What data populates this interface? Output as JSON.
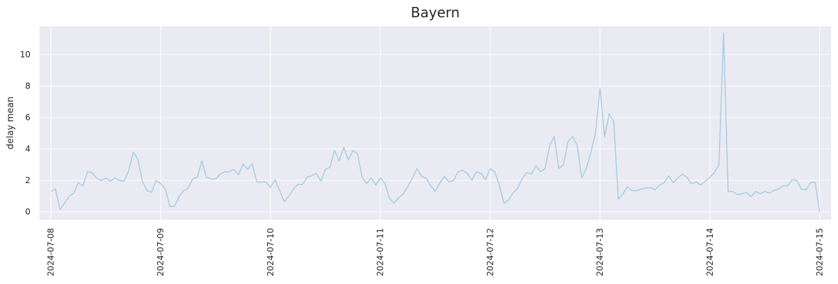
{
  "chart_data": {
    "type": "line",
    "title": "Bayern",
    "xlabel": "",
    "ylabel": "delay mean",
    "ylim": [
      -0.5,
      11.8
    ],
    "xlim": [
      "2024-07-07T21:30",
      "2024-07-15T02:30"
    ],
    "grid": true,
    "legend": "none",
    "line_color": "#a6cee3",
    "background_color": "#eaeaf2",
    "grid_color": "#ffffff",
    "x_ticks": [
      "2024-07-08",
      "2024-07-09",
      "2024-07-10",
      "2024-07-11",
      "2024-07-12",
      "2024-07-13",
      "2024-07-14",
      "2024-07-15"
    ],
    "y_ticks": [
      0,
      2,
      4,
      6,
      8,
      10
    ],
    "series": [
      {
        "x": [
          "2024-07-08 00:00",
          "2024-07-08 01:00",
          "2024-07-08 02:00",
          "2024-07-08 03:00",
          "2024-07-08 04:00",
          "2024-07-08 05:00",
          "2024-07-08 06:00",
          "2024-07-08 07:00",
          "2024-07-08 08:00",
          "2024-07-08 09:00",
          "2024-07-08 10:00",
          "2024-07-08 11:00",
          "2024-07-08 12:00",
          "2024-07-08 13:00",
          "2024-07-08 14:00",
          "2024-07-08 15:00",
          "2024-07-08 16:00",
          "2024-07-08 17:00",
          "2024-07-08 18:00",
          "2024-07-08 19:00",
          "2024-07-08 20:00",
          "2024-07-08 21:00",
          "2024-07-08 22:00",
          "2024-07-08 23:00",
          "2024-07-09 00:00",
          "2024-07-09 01:00",
          "2024-07-09 02:00",
          "2024-07-09 03:00",
          "2024-07-09 04:00",
          "2024-07-09 05:00",
          "2024-07-09 06:00",
          "2024-07-09 07:00",
          "2024-07-09 08:00",
          "2024-07-09 09:00",
          "2024-07-09 10:00",
          "2024-07-09 11:00",
          "2024-07-09 12:00",
          "2024-07-09 13:00",
          "2024-07-09 14:00",
          "2024-07-09 15:00",
          "2024-07-09 16:00",
          "2024-07-09 17:00",
          "2024-07-09 18:00",
          "2024-07-09 19:00",
          "2024-07-09 20:00",
          "2024-07-09 21:00",
          "2024-07-09 22:00",
          "2024-07-09 23:00",
          "2024-07-10 00:00",
          "2024-07-10 01:00",
          "2024-07-10 02:00",
          "2024-07-10 03:00",
          "2024-07-10 04:00",
          "2024-07-10 05:00",
          "2024-07-10 06:00",
          "2024-07-10 07:00",
          "2024-07-10 08:00",
          "2024-07-10 09:00",
          "2024-07-10 10:00",
          "2024-07-10 11:00",
          "2024-07-10 12:00",
          "2024-07-10 13:00",
          "2024-07-10 14:00",
          "2024-07-10 15:00",
          "2024-07-10 16:00",
          "2024-07-10 17:00",
          "2024-07-10 18:00",
          "2024-07-10 19:00",
          "2024-07-10 20:00",
          "2024-07-10 21:00",
          "2024-07-10 22:00",
          "2024-07-10 23:00",
          "2024-07-11 00:00",
          "2024-07-11 01:00",
          "2024-07-11 02:00",
          "2024-07-11 03:00",
          "2024-07-11 04:00",
          "2024-07-11 05:00",
          "2024-07-11 06:00",
          "2024-07-11 07:00",
          "2024-07-11 08:00",
          "2024-07-11 09:00",
          "2024-07-11 10:00",
          "2024-07-11 11:00",
          "2024-07-11 12:00",
          "2024-07-11 13:00",
          "2024-07-11 14:00",
          "2024-07-11 15:00",
          "2024-07-11 16:00",
          "2024-07-11 17:00",
          "2024-07-11 18:00",
          "2024-07-11 19:00",
          "2024-07-11 20:00",
          "2024-07-11 21:00",
          "2024-07-11 22:00",
          "2024-07-11 23:00",
          "2024-07-12 00:00",
          "2024-07-12 01:00",
          "2024-07-12 02:00",
          "2024-07-12 03:00",
          "2024-07-12 04:00",
          "2024-07-12 05:00",
          "2024-07-12 06:00",
          "2024-07-12 07:00",
          "2024-07-12 08:00",
          "2024-07-12 09:00",
          "2024-07-12 10:00",
          "2024-07-12 11:00",
          "2024-07-12 12:00",
          "2024-07-12 13:00",
          "2024-07-12 14:00",
          "2024-07-12 15:00",
          "2024-07-12 16:00",
          "2024-07-12 17:00",
          "2024-07-12 18:00",
          "2024-07-12 19:00",
          "2024-07-12 20:00",
          "2024-07-12 21:00",
          "2024-07-12 22:00",
          "2024-07-12 23:00",
          "2024-07-13 00:00",
          "2024-07-13 01:00",
          "2024-07-13 02:00",
          "2024-07-13 03:00",
          "2024-07-13 04:00",
          "2024-07-13 05:00",
          "2024-07-13 06:00",
          "2024-07-13 07:00",
          "2024-07-13 08:00",
          "2024-07-13 09:00",
          "2024-07-13 10:00",
          "2024-07-13 11:00",
          "2024-07-13 12:00",
          "2024-07-13 13:00",
          "2024-07-13 14:00",
          "2024-07-13 15:00",
          "2024-07-13 16:00",
          "2024-07-13 17:00",
          "2024-07-13 18:00",
          "2024-07-13 19:00",
          "2024-07-13 20:00",
          "2024-07-13 21:00",
          "2024-07-13 22:00",
          "2024-07-13 23:00",
          "2024-07-14 00:00",
          "2024-07-14 01:00",
          "2024-07-14 02:00",
          "2024-07-14 03:00",
          "2024-07-14 04:00",
          "2024-07-14 05:00",
          "2024-07-14 06:00",
          "2024-07-14 07:00",
          "2024-07-14 08:00",
          "2024-07-14 09:00",
          "2024-07-14 10:00",
          "2024-07-14 11:00",
          "2024-07-14 12:00",
          "2024-07-14 13:00",
          "2024-07-14 14:00",
          "2024-07-14 15:00",
          "2024-07-14 16:00",
          "2024-07-14 17:00",
          "2024-07-14 18:00",
          "2024-07-14 19:00",
          "2024-07-14 20:00",
          "2024-07-14 21:00",
          "2024-07-14 22:00",
          "2024-07-14 23:00",
          "2024-07-15 00:00"
        ],
        "y": [
          1.3,
          1.45,
          0.15,
          0.55,
          1.0,
          1.2,
          1.85,
          1.65,
          2.55,
          2.5,
          2.15,
          2.0,
          2.15,
          1.95,
          2.15,
          2.0,
          1.95,
          2.6,
          3.8,
          3.35,
          1.95,
          1.35,
          1.25,
          2.0,
          1.8,
          1.45,
          0.35,
          0.35,
          0.95,
          1.35,
          1.5,
          2.1,
          2.2,
          3.25,
          2.2,
          2.1,
          2.1,
          2.4,
          2.55,
          2.55,
          2.7,
          2.35,
          3.05,
          2.7,
          3.05,
          1.9,
          1.9,
          1.9,
          1.55,
          2.05,
          1.35,
          0.65,
          1.0,
          1.45,
          1.75,
          1.75,
          2.2,
          2.3,
          2.45,
          1.95,
          2.7,
          2.85,
          3.9,
          3.25,
          4.1,
          3.3,
          3.9,
          3.7,
          2.2,
          1.8,
          2.15,
          1.7,
          2.15,
          1.8,
          0.85,
          0.55,
          0.9,
          1.15,
          1.6,
          2.15,
          2.75,
          2.25,
          2.15,
          1.65,
          1.3,
          1.85,
          2.25,
          1.9,
          2.0,
          2.55,
          2.65,
          2.45,
          2.0,
          2.55,
          2.45,
          2.05,
          2.75,
          2.55,
          1.7,
          0.55,
          0.75,
          1.2,
          1.5,
          2.1,
          2.5,
          2.4,
          2.95,
          2.55,
          2.75,
          4.2,
          4.8,
          2.75,
          3.0,
          4.45,
          4.8,
          4.25,
          2.15,
          2.75,
          3.75,
          5.0,
          7.85,
          4.75,
          6.25,
          5.75,
          0.8,
          1.15,
          1.6,
          1.35,
          1.35,
          1.45,
          1.5,
          1.55,
          1.4,
          1.7,
          1.85,
          2.3,
          1.85,
          2.15,
          2.4,
          2.2,
          1.8,
          1.9,
          1.7,
          1.95,
          2.2,
          2.5,
          3.0,
          11.35,
          1.3,
          1.3,
          1.1,
          1.15,
          1.25,
          0.95,
          1.3,
          1.15,
          1.3,
          1.2,
          1.35,
          1.45,
          1.65,
          1.65,
          2.05,
          2.0,
          1.45,
          1.4,
          1.85,
          1.9,
          0.0
        ]
      }
    ]
  }
}
